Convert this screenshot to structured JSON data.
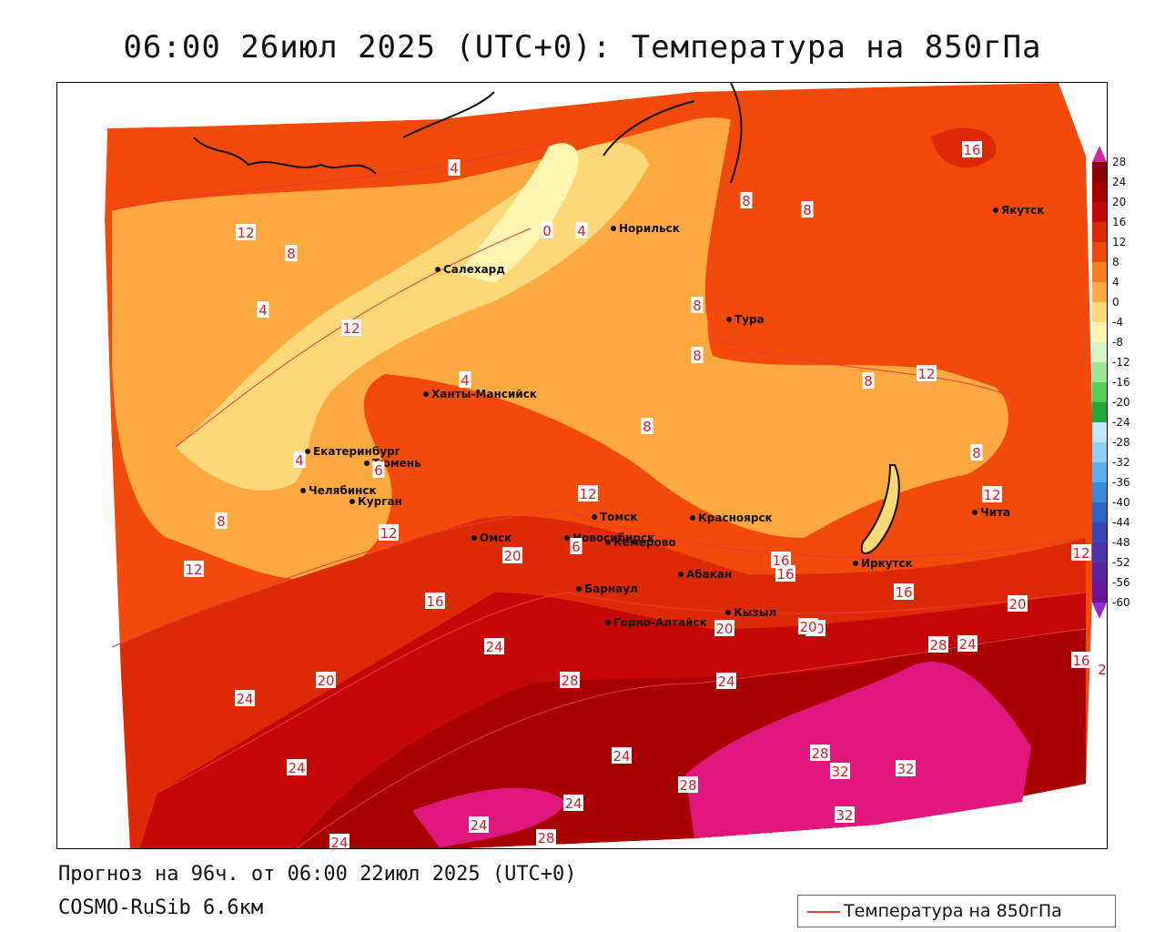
{
  "title": "06:00 26июл 2025 (UTC+0): Температура на 850гПа",
  "forecast_text": "Прогноз на 96ч. от 06:00 22июл 2025 (UTC+0)",
  "model_text": "COSMO-RuSib 6.6км",
  "legend": {
    "label": "Температура на 850гПа",
    "line_color": "#e83a3a"
  },
  "colorbar": {
    "ticks": [
      "28",
      "24",
      "20",
      "16",
      "12",
      "8",
      "4",
      "0",
      "-4",
      "-8",
      "-12",
      "-16",
      "-20",
      "-24",
      "-28",
      "-32",
      "-36",
      "-40",
      "-44",
      "-48",
      "-52",
      "-56",
      "-60"
    ],
    "colors": [
      "#8b0000",
      "#a80000",
      "#c40808",
      "#dc2a08",
      "#f24a0a",
      "#fb7e1e",
      "#fcaa40",
      "#fdd878",
      "#fdf5b0",
      "#d6f5c8",
      "#9fe69a",
      "#55cc55",
      "#22a83a",
      "#bfe6f8",
      "#8ed0f5",
      "#5ab0ec",
      "#3c8ad8",
      "#2c64c4",
      "#3848b4",
      "#4a34a8",
      "#5a24a0",
      "#6a1598"
    ],
    "top_triangle_color": "#cc2aa0",
    "bottom_triangle_color": "#9a2ad0"
  },
  "cities": [
    {
      "name": "Норильск"
    },
    {
      "name": "Якутск"
    },
    {
      "name": "Салехард"
    },
    {
      "name": "Тура"
    },
    {
      "name": "Ханты-Мансийск"
    },
    {
      "name": "Екатеринбург"
    },
    {
      "name": "Тюмень"
    },
    {
      "name": "Челябинск"
    },
    {
      "name": "Курган"
    },
    {
      "name": "Омск"
    },
    {
      "name": "Томск"
    },
    {
      "name": "Новосибирск"
    },
    {
      "name": "Кемерово"
    },
    {
      "name": "Красноярск"
    },
    {
      "name": "Абакан"
    },
    {
      "name": "Барнаул"
    },
    {
      "name": "Горно-Алтайск"
    },
    {
      "name": "Кызыл"
    },
    {
      "name": "Иркутск"
    },
    {
      "name": "Чита"
    }
  ],
  "isotherm_labels": [
    "16",
    "8",
    "4",
    "8",
    "12",
    "8",
    "0",
    "4",
    "4",
    "12",
    "4",
    "8",
    "8",
    "8",
    "12",
    "8",
    "4",
    "6",
    "8",
    "12",
    "12",
    "8",
    "12",
    "12",
    "20",
    "6",
    "16",
    "12",
    "16",
    "16",
    "16",
    "20",
    "20",
    "20",
    "24",
    "20",
    "24",
    "28",
    "24",
    "16",
    "20",
    "2",
    "24",
    "28",
    "24",
    "28",
    "24",
    "32",
    "32",
    "24",
    "24",
    "28",
    "24",
    "32",
    "28"
  ]
}
